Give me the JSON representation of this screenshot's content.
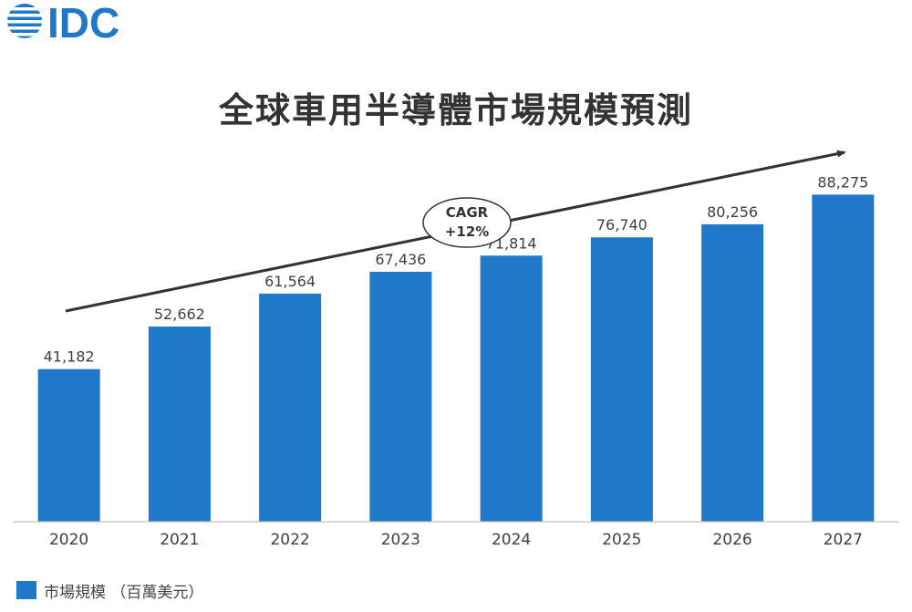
{
  "logo": {
    "text": "IDC",
    "color": "#1f78c8"
  },
  "chart_data": {
    "type": "bar",
    "title": "全球車用半導體市場規模預測",
    "categories": [
      "2020",
      "2021",
      "2022",
      "2023",
      "2024",
      "2025",
      "2026",
      "2027"
    ],
    "series": [
      {
        "name": "市場規模 （百萬美元）",
        "values": [
          41182,
          52662,
          61564,
          67436,
          71814,
          76740,
          80256,
          88275
        ]
      }
    ],
    "data_labels": [
      "41,182",
      "52,662",
      "61,564",
      "67,436",
      "71,814",
      "76,740",
      "80,256",
      "88,275"
    ],
    "ylim": [
      0,
      108800
    ],
    "grid": false,
    "legend_position": "bottom-left",
    "annotation": {
      "lines": [
        "CAGR",
        "+12%"
      ]
    },
    "bar_color": "#1f78c8",
    "trend_arrow_color": "#333333"
  }
}
